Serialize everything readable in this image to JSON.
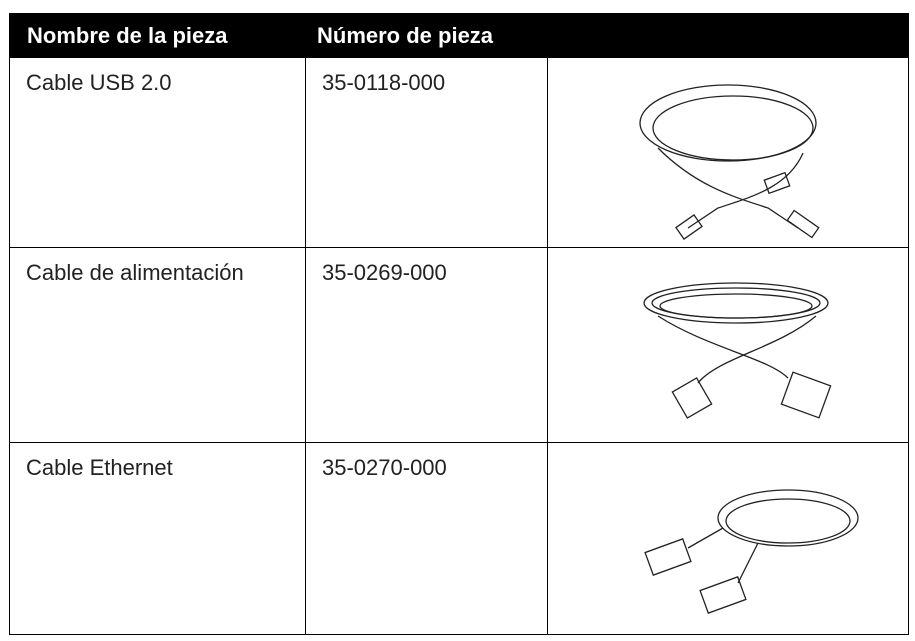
{
  "table": {
    "headers": [
      "Nombre de la pieza",
      "Número de pieza"
    ],
    "rows": [
      [
        "Cable USB 2.0",
        "35-0118-000"
      ],
      [
        "Cable de alimentación",
        "35-0269-000"
      ],
      [
        "Cable Ethernet",
        "35-0270-000"
      ]
    ]
  }
}
